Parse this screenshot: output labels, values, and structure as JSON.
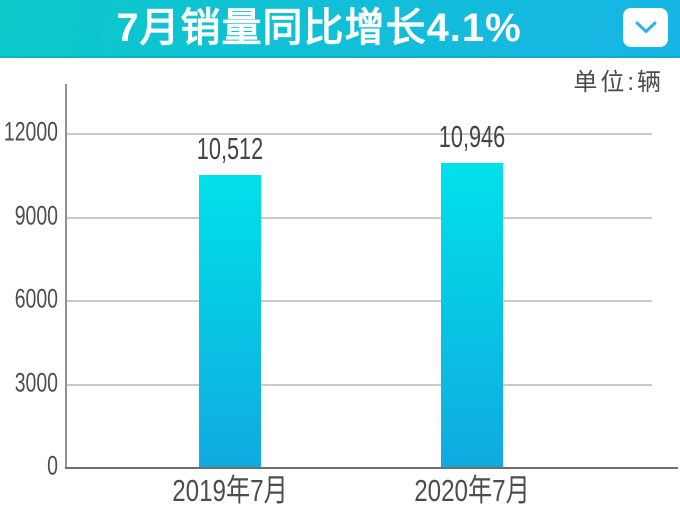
{
  "header": {
    "title": "7月销量同比增长4.1%"
  },
  "chart": {
    "unit_label": "单位:辆"
  },
  "chart_data": {
    "type": "bar",
    "title": "7月销量同比增长4.1%",
    "unit": "单位:辆",
    "categories": [
      "2019年7月",
      "2020年7月"
    ],
    "values": [
      10512,
      10946
    ],
    "value_labels": [
      "10,512",
      "10,946"
    ],
    "ylim": [
      0,
      12000
    ],
    "yticks": [
      0,
      3000,
      6000,
      9000,
      12000
    ],
    "grid": true,
    "legend": false,
    "colors": {
      "header_gradient_left": "#0bc9c9",
      "header_gradient_right": "#17b5e5",
      "title_text": "#ffffff",
      "bar_gradient_top": "#00e1ea",
      "bar_gradient_bottom": "#10aadf",
      "chevron": "#2ab5e3",
      "label_text": "#4d4d4d",
      "gridline": "#c9c9c9",
      "y_axis_line": "#939393",
      "baseline": "#6f6f6f"
    }
  }
}
